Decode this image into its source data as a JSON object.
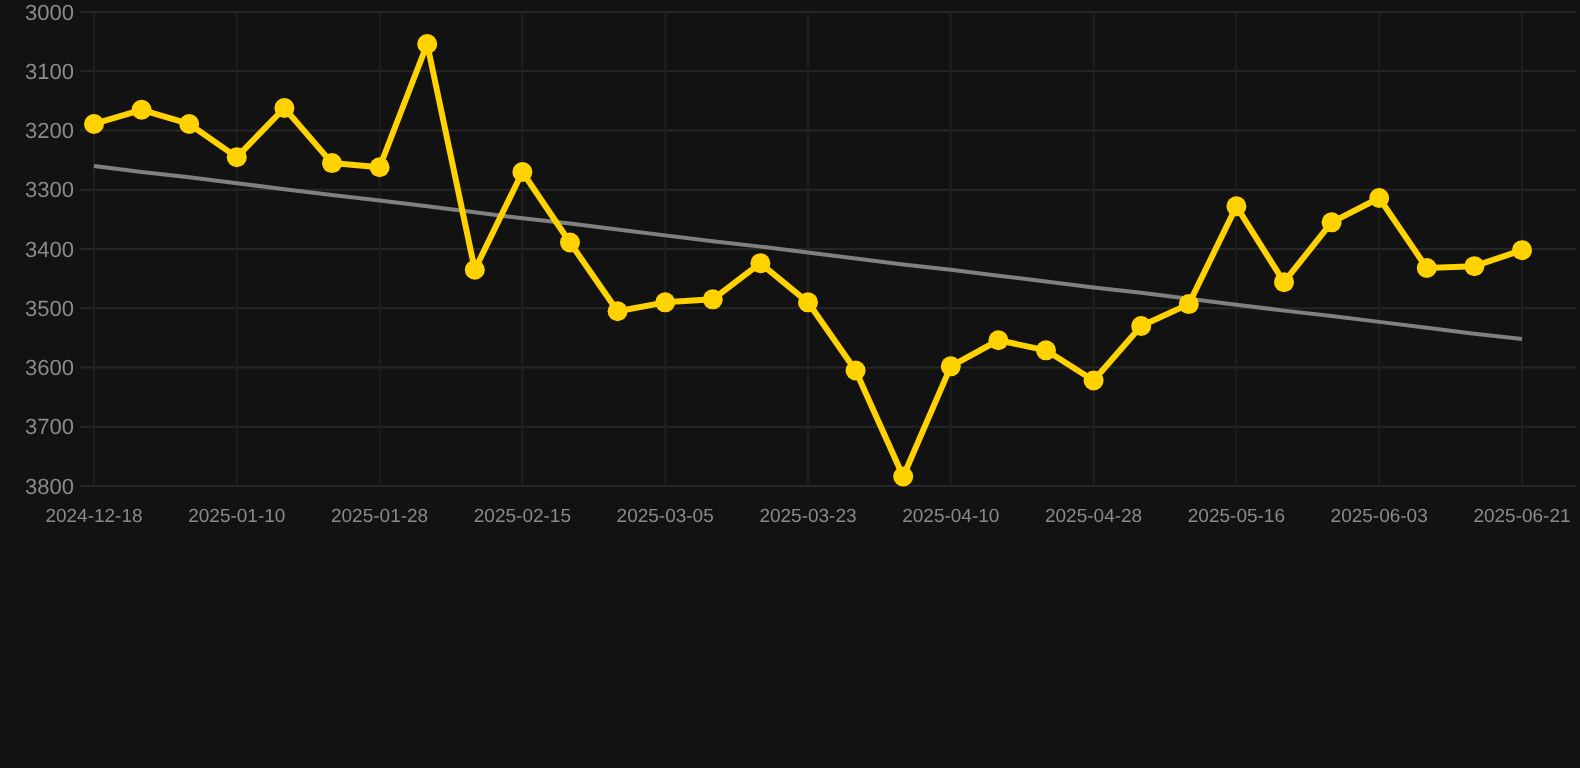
{
  "chart_data": {
    "type": "line",
    "categories": [
      "2024-12-18",
      null,
      null,
      "2025-01-10",
      null,
      null,
      "2025-01-28",
      null,
      null,
      "2025-02-15",
      null,
      null,
      "2025-03-05",
      null,
      null,
      "2025-03-23",
      null,
      null,
      "2025-04-10",
      null,
      null,
      "2025-04-28",
      null,
      null,
      "2025-05-16",
      null,
      null,
      "2025-06-03",
      null,
      null,
      "2025-06-21"
    ],
    "series": [
      {
        "color": "#ffd200",
        "marker": "circle",
        "values": [
          3189,
          3165,
          3189,
          3245,
          3162,
          3255,
          3262,
          3054,
          3435,
          3270,
          3389,
          3505,
          3490,
          3485,
          3424,
          3490,
          3605,
          3784,
          3598,
          3554,
          3571,
          3622,
          3530,
          3493,
          3328,
          3456,
          3355,
          3314,
          3432,
          3429,
          3402
        ]
      },
      {
        "type": "line",
        "color": "#808080",
        "marker": "none",
        "values": [
          3260,
          3270,
          3279,
          3289,
          3299,
          3309,
          3318,
          3328,
          3338,
          3348,
          3357,
          3367,
          3377,
          3387,
          3396,
          3406,
          3416,
          3426,
          3435,
          3445,
          3455,
          3465,
          3474,
          3484,
          3494,
          3504,
          3513,
          3523,
          3533,
          3543,
          3552
        ]
      }
    ],
    "ylim": [
      3800,
      3000
    ],
    "yticks": [
      3000,
      3100,
      3200,
      3300,
      3400,
      3500,
      3600,
      3700,
      3800
    ],
    "grid": true
  }
}
